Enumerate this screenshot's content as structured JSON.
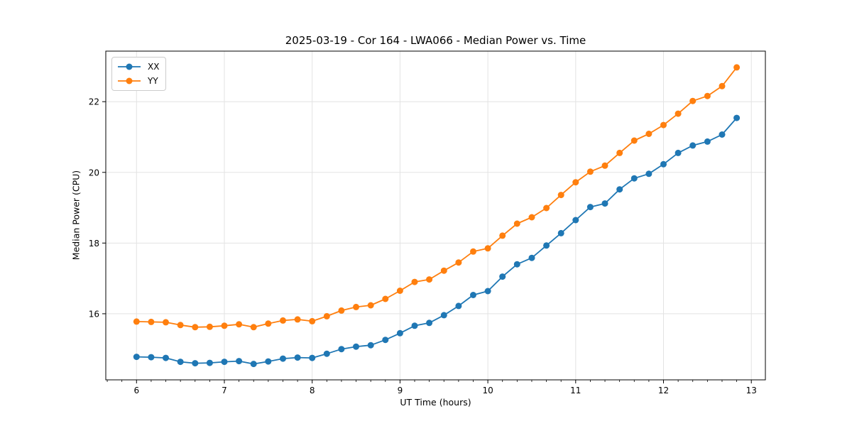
{
  "chart_data": {
    "type": "line",
    "marker": "circle",
    "title": "2025-03-19 - Cor 164 - LWA066 - Median Power vs. Time",
    "xlabel": "UT Time (hours)",
    "ylabel": "Median Power (CPU)",
    "xlim": [
      5.65,
      13.16
    ],
    "ylim": [
      14.13,
      23.43
    ],
    "xticks": [
      6,
      7,
      8,
      9,
      10,
      11,
      12,
      13
    ],
    "yticks": [
      16,
      18,
      20,
      22
    ],
    "x_minor_step": 0.166667,
    "grid": "major",
    "legend_position": "upper-left",
    "x": [
      6,
      6.1667,
      6.3333,
      6.5,
      6.6667,
      6.8333,
      7,
      7.1667,
      7.3333,
      7.5,
      7.6667,
      7.8333,
      8,
      8.1667,
      8.3333,
      8.5,
      8.6667,
      8.8333,
      9,
      9.1667,
      9.3333,
      9.5,
      9.6667,
      9.8333,
      10,
      10.1667,
      10.3333,
      10.5,
      10.6667,
      10.8333,
      11,
      11.1667,
      11.3333,
      11.5,
      11.6667,
      11.8333,
      12,
      12.1667,
      12.3333,
      12.5,
      12.6667,
      12.8333
    ],
    "series": [
      {
        "name": "XX",
        "color": "#1f77b4",
        "values": [
          14.78,
          14.77,
          14.75,
          14.64,
          14.6,
          14.61,
          14.64,
          14.66,
          14.58,
          14.65,
          14.73,
          14.76,
          14.75,
          14.87,
          15.0,
          15.07,
          15.11,
          15.26,
          15.45,
          15.66,
          15.74,
          15.96,
          16.22,
          16.53,
          16.64,
          17.05,
          17.4,
          17.58,
          17.93,
          18.28,
          18.65,
          19.02,
          19.12,
          19.52,
          19.83,
          19.96,
          20.23,
          20.55,
          20.76,
          20.87,
          21.07,
          21.54
        ]
      },
      {
        "name": "YY",
        "color": "#ff7f0e",
        "values": [
          15.78,
          15.77,
          15.76,
          15.68,
          15.62,
          15.63,
          15.66,
          15.7,
          15.62,
          15.72,
          15.81,
          15.84,
          15.79,
          15.93,
          16.09,
          16.19,
          16.24,
          16.42,
          16.65,
          16.9,
          16.97,
          17.22,
          17.45,
          17.76,
          17.85,
          18.21,
          18.55,
          18.73,
          18.99,
          19.36,
          19.72,
          20.02,
          20.19,
          20.55,
          20.9,
          21.09,
          21.34,
          21.66,
          22.02,
          22.16,
          22.44,
          22.97
        ]
      }
    ],
    "style": {
      "grid_color": "#e3e3e3",
      "spine_color": "#000000",
      "tick_color": "#000000",
      "text_color": "#000000"
    }
  }
}
